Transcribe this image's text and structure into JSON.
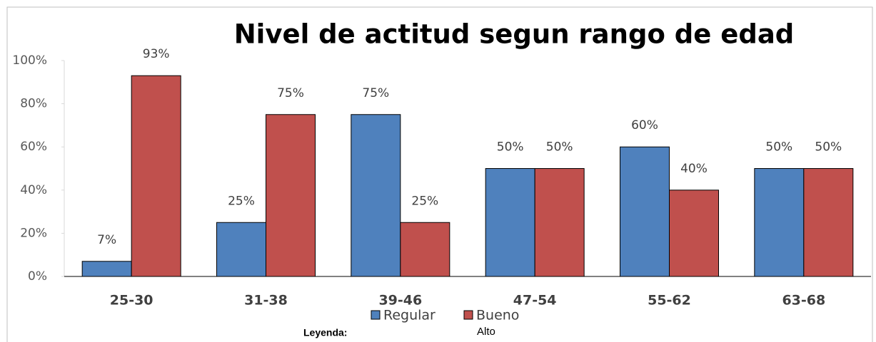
{
  "chart_data": {
    "type": "bar",
    "title": "Nivel de actitud segun rango de edad",
    "categories": [
      "25-30",
      "31-38",
      "39-46",
      "47-54",
      "55-62",
      "63-68"
    ],
    "series": [
      {
        "name": "Regular",
        "color": "#4f81bd",
        "values": [
          7,
          25,
          75,
          50,
          60,
          50
        ],
        "value_labels": [
          "7%",
          "25%",
          "75%",
          "50%",
          "60%",
          "50%"
        ]
      },
      {
        "name": "Bueno",
        "color": "#c0504d",
        "values": [
          93,
          75,
          25,
          50,
          40,
          50
        ],
        "value_labels": [
          "93%",
          "75%",
          "25%",
          "50%",
          "40%",
          "50%"
        ]
      }
    ],
    "ylim": [
      0,
      100
    ],
    "yticks": [
      {
        "value": 0,
        "label": "0%"
      },
      {
        "value": 20,
        "label": "20%"
      },
      {
        "value": 40,
        "label": "40%"
      },
      {
        "value": 60,
        "label": "60%"
      },
      {
        "value": 80,
        "label": "80%"
      },
      {
        "value": 100,
        "label": "100%"
      }
    ],
    "grid": false,
    "legend": "bottom",
    "annotations": [
      "Leyenda:",
      "Alto"
    ]
  }
}
